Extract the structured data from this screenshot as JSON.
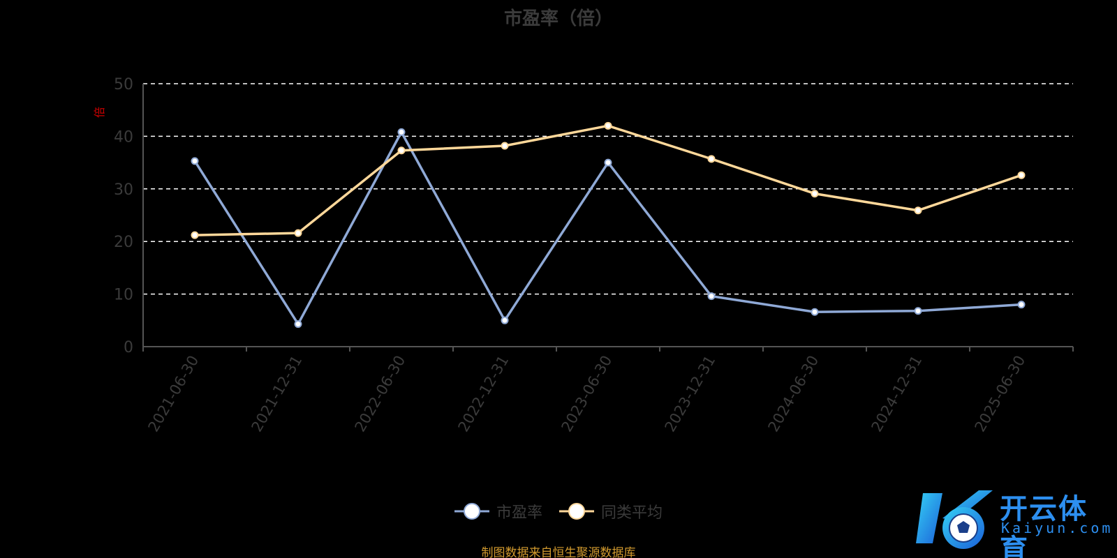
{
  "chart_data": {
    "type": "line",
    "title": "市盈率（倍）",
    "ylabel": "倍",
    "categories": [
      "2021-06-30",
      "2021-12-31",
      "2022-06-30",
      "2022-12-31",
      "2023-06-30",
      "2023-12-31",
      "2024-06-30",
      "2024-12-31",
      "2025-06-30"
    ],
    "ylim": [
      0,
      50
    ],
    "yticks": [
      "0",
      "10",
      "20",
      "30",
      "40",
      "50"
    ],
    "grid": true,
    "legend_position": "bottom-center",
    "series": [
      {
        "name": "市盈率",
        "color": "#8fa9d6",
        "values": [
          35.3,
          4.3,
          40.8,
          5.0,
          35.0,
          9.6,
          6.6,
          6.8,
          8.0
        ]
      },
      {
        "name": "同类平均",
        "color": "#ffd89a",
        "values": [
          21.2,
          21.6,
          37.3,
          38.2,
          42.0,
          35.7,
          29.1,
          25.9,
          32.6
        ]
      }
    ]
  },
  "source_note": "制图数据来自恒生聚源数据库",
  "watermark": {
    "cn": "开云体育",
    "en": "Kaiyun.com"
  },
  "colors": {
    "axis": "#555555",
    "grid": "#ffffff",
    "tick_label": "#3b3b3b",
    "ylabel": "#cc0000"
  }
}
